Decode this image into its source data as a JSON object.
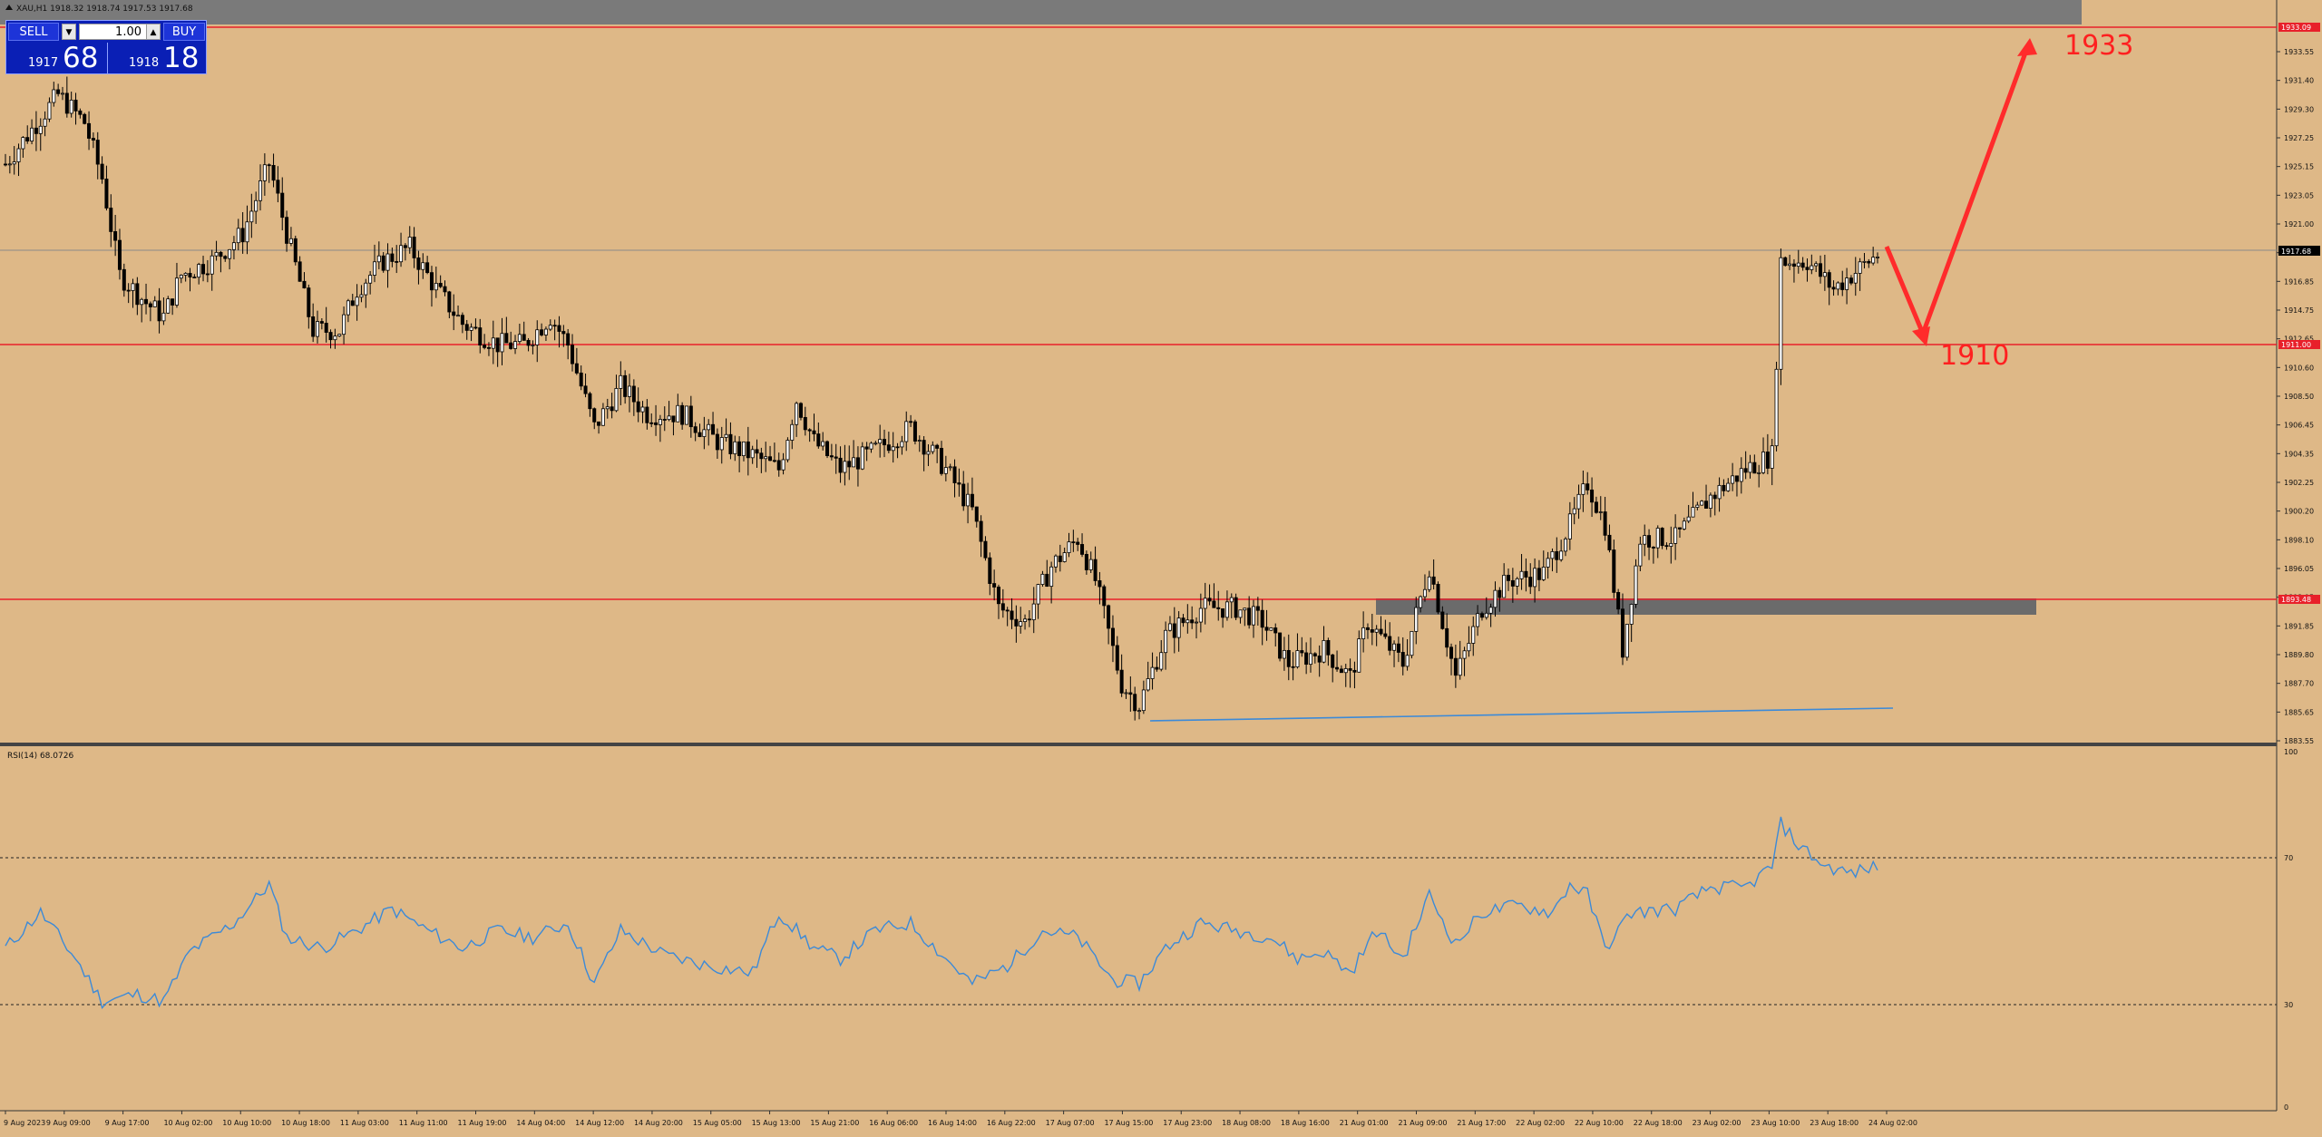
{
  "window": {
    "title": "XAU,H1  1918.32 1918.74 1917.53 1917.68"
  },
  "trade_panel": {
    "sell_label": "SELL",
    "buy_label": "BUY",
    "lot_value": "1.00",
    "sell_price_small": "1917",
    "sell_price_big": "68",
    "buy_price_small": "1918",
    "buy_price_big": "18"
  },
  "annotations": {
    "target_up": "1933",
    "target_down": "1910"
  },
  "price_axis": {
    "ticks": [
      "1933.55",
      "1931.40",
      "1929.30",
      "1927.25",
      "1925.15",
      "1923.05",
      "1921.00",
      "1918.90",
      "1916.85",
      "1914.75",
      "1912.65",
      "1910.60",
      "1908.50",
      "1906.45",
      "1904.35",
      "1902.25",
      "1900.20",
      "1898.10",
      "1896.05",
      "1893.95",
      "1891.85",
      "1889.80",
      "1887.70",
      "1885.65",
      "1883.55"
    ],
    "current_price": "1917.68",
    "level_top": "1933.09",
    "level_mid": "1911.00",
    "level_low": "1893.48"
  },
  "time_axis": {
    "labels": [
      "9 Aug 2023",
      "9 Aug 09:00",
      "9 Aug 17:00",
      "10 Aug 02:00",
      "10 Aug 10:00",
      "10 Aug 18:00",
      "11 Aug 03:00",
      "11 Aug 11:00",
      "11 Aug 19:00",
      "14 Aug 04:00",
      "14 Aug 12:00",
      "14 Aug 20:00",
      "15 Aug 05:00",
      "15 Aug 13:00",
      "15 Aug 21:00",
      "16 Aug 06:00",
      "16 Aug 14:00",
      "16 Aug 22:00",
      "17 Aug 07:00",
      "17 Aug 15:00",
      "17 Aug 23:00",
      "18 Aug 08:00",
      "18 Aug 16:00",
      "21 Aug 01:00",
      "21 Aug 09:00",
      "21 Aug 17:00",
      "22 Aug 02:00",
      "22 Aug 10:00",
      "22 Aug 18:00",
      "23 Aug 02:00",
      "23 Aug 10:00",
      "23 Aug 18:00",
      "24 Aug 02:00"
    ]
  },
  "indicator": {
    "label": "RSI(14) 68.0726",
    "levels": [
      "100",
      "70",
      "30",
      "0"
    ]
  },
  "colors": {
    "background": "#deb887",
    "bull_candle": "#ffffff",
    "bear_candle": "#000000",
    "level_line": "#e8202a",
    "rsi_line": "#3c8ad8",
    "support_line": "#3c8ad8",
    "zone": "#6b6b6b",
    "annotation": "#ff2020"
  },
  "chart_data": {
    "type": "candlestick",
    "symbol": "XAU",
    "timeframe": "H1",
    "ylim": [
      1883.55,
      1935.0
    ],
    "anchors": [
      [
        0,
        1925.0
      ],
      [
        12,
        1930.0
      ],
      [
        18,
        1928.0
      ],
      [
        22,
        1924.0
      ],
      [
        26,
        1917.0
      ],
      [
        32,
        1915.0
      ],
      [
        36,
        1914.0
      ],
      [
        40,
        1917.0
      ],
      [
        47,
        1918.0
      ],
      [
        54,
        1920.0
      ],
      [
        60,
        1925.0
      ],
      [
        64,
        1920.0
      ],
      [
        70,
        1913.0
      ],
      [
        76,
        1913.0
      ],
      [
        80,
        1916.0
      ],
      [
        86,
        1918.0
      ],
      [
        92,
        1919.0
      ],
      [
        98,
        1916.0
      ],
      [
        104,
        1913.5
      ],
      [
        112,
        1912.0
      ],
      [
        118,
        1912.0
      ],
      [
        124,
        1914.0
      ],
      [
        128,
        1912.0
      ],
      [
        134,
        1906.0
      ],
      [
        140,
        1909.0
      ],
      [
        146,
        1907.0
      ],
      [
        154,
        1907.0
      ],
      [
        162,
        1905.0
      ],
      [
        170,
        1904.0
      ],
      [
        176,
        1903.0
      ],
      [
        180,
        1908.0
      ],
      [
        184,
        1905.0
      ],
      [
        190,
        1903.0
      ],
      [
        196,
        1904.0
      ],
      [
        206,
        1906.0
      ],
      [
        214,
        1903.0
      ],
      [
        220,
        1900.0
      ],
      [
        226,
        1893.0
      ],
      [
        232,
        1892.0
      ],
      [
        238,
        1896.0
      ],
      [
        244,
        1898.0
      ],
      [
        248,
        1895.0
      ],
      [
        254,
        1887.5
      ],
      [
        258,
        1886.0
      ],
      [
        264,
        1891.0
      ],
      [
        272,
        1893.0
      ],
      [
        280,
        1893.0
      ],
      [
        286,
        1892.0
      ],
      [
        292,
        1889.0
      ],
      [
        300,
        1890.0
      ],
      [
        306,
        1888.0
      ],
      [
        310,
        1892.0
      ],
      [
        318,
        1889.0
      ],
      [
        324,
        1896.0
      ],
      [
        330,
        1888.0
      ],
      [
        336,
        1893.0
      ],
      [
        342,
        1895.0
      ],
      [
        350,
        1895.5
      ],
      [
        356,
        1899.0
      ],
      [
        360,
        1902.0
      ],
      [
        364,
        1899.0
      ],
      [
        368,
        1890.0
      ],
      [
        372,
        1898.0
      ],
      [
        380,
        1898.0
      ],
      [
        388,
        1901.0
      ],
      [
        396,
        1903.0
      ],
      [
        402,
        1904.0
      ],
      [
        404,
        1918.0
      ],
      [
        410,
        1918.0
      ],
      [
        416,
        1916.0
      ],
      [
        422,
        1917.5
      ],
      [
        426,
        1918.5
      ]
    ],
    "rsi": [
      [
        0,
        45
      ],
      [
        8,
        55
      ],
      [
        16,
        42
      ],
      [
        22,
        30
      ],
      [
        30,
        32
      ],
      [
        36,
        30
      ],
      [
        42,
        44
      ],
      [
        52,
        52
      ],
      [
        60,
        63
      ],
      [
        64,
        48
      ],
      [
        72,
        45
      ],
      [
        80,
        50
      ],
      [
        88,
        56
      ],
      [
        96,
        50
      ],
      [
        104,
        45
      ],
      [
        112,
        50
      ],
      [
        120,
        48
      ],
      [
        128,
        52
      ],
      [
        134,
        35
      ],
      [
        140,
        50
      ],
      [
        150,
        43
      ],
      [
        160,
        40
      ],
      [
        170,
        38
      ],
      [
        176,
        55
      ],
      [
        184,
        45
      ],
      [
        190,
        42
      ],
      [
        198,
        50
      ],
      [
        206,
        52
      ],
      [
        214,
        42
      ],
      [
        220,
        35
      ],
      [
        228,
        40
      ],
      [
        236,
        50
      ],
      [
        244,
        48
      ],
      [
        252,
        36
      ],
      [
        258,
        35
      ],
      [
        264,
        45
      ],
      [
        272,
        52
      ],
      [
        280,
        50
      ],
      [
        288,
        48
      ],
      [
        294,
        42
      ],
      [
        300,
        44
      ],
      [
        306,
        38
      ],
      [
        312,
        50
      ],
      [
        318,
        42
      ],
      [
        324,
        60
      ],
      [
        330,
        46
      ],
      [
        336,
        55
      ],
      [
        344,
        57
      ],
      [
        352,
        55
      ],
      [
        356,
        63
      ],
      [
        360,
        60
      ],
      [
        364,
        45
      ],
      [
        370,
        55
      ],
      [
        380,
        56
      ],
      [
        388,
        62
      ],
      [
        396,
        62
      ],
      [
        402,
        68
      ],
      [
        404,
        80
      ],
      [
        408,
        74
      ],
      [
        414,
        68
      ],
      [
        420,
        66
      ],
      [
        426,
        68
      ]
    ]
  }
}
